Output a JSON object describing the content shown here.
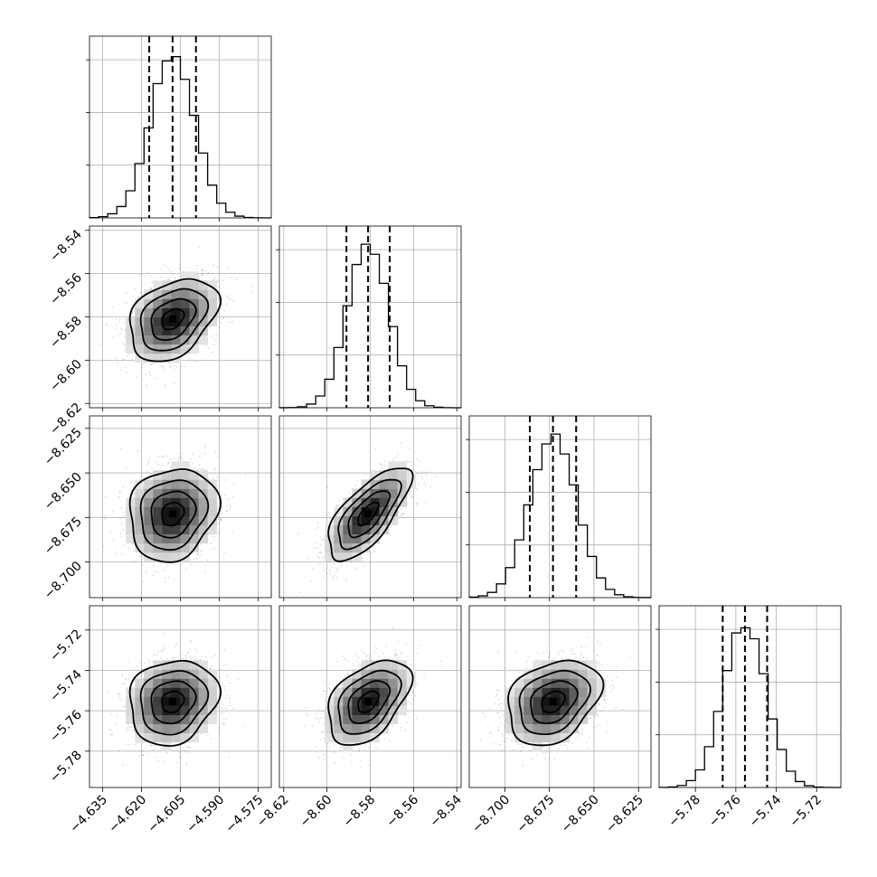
{
  "chart_data": {
    "type": "corner",
    "n_params": 4,
    "parameters": [
      {
        "median": -4.608,
        "q16": -4.617,
        "q84": -4.599,
        "sigma": 0.0085,
        "range": [
          -4.64,
          -4.57
        ],
        "ticks": [
          -4.635,
          -4.62,
          -4.605,
          -4.59,
          -4.575
        ],
        "tick_labels": [
          "−4.635",
          "−4.620",
          "−4.605",
          "−4.590",
          "−4.575"
        ]
      },
      {
        "median": -8.581,
        "q16": -8.591,
        "q84": -8.571,
        "sigma": 0.0095,
        "range": [
          -8.622,
          -8.538
        ],
        "ticks": [
          -8.62,
          -8.6,
          -8.58,
          -8.56,
          -8.54
        ],
        "tick_labels": [
          "−8.62",
          "−8.60",
          "−8.58",
          "−8.56",
          "−8.54"
        ]
      },
      {
        "median": -8.673,
        "q16": -8.686,
        "q84": -8.66,
        "sigma": 0.013,
        "range": [
          -8.72,
          -8.618
        ],
        "ticks": [
          -8.7,
          -8.675,
          -8.65,
          -8.625
        ],
        "tick_labels": [
          "−8.700",
          "−8.675",
          "−8.650",
          "−8.625"
        ]
      },
      {
        "median": -5.7555,
        "q16": -5.7665,
        "q84": -5.7445,
        "sigma": 0.0105,
        "range": [
          -5.798,
          -5.708
        ],
        "ticks": [
          -5.78,
          -5.76,
          -5.74,
          -5.72
        ],
        "tick_labels": [
          "−5.78",
          "−5.76",
          "−5.74",
          "−5.72"
        ]
      }
    ],
    "correlations": [
      {
        "pair": [
          0,
          1
        ],
        "rho": 0.35
      },
      {
        "pair": [
          0,
          2
        ],
        "rho": 0.15
      },
      {
        "pair": [
          1,
          2
        ],
        "rho": 0.7
      },
      {
        "pair": [
          0,
          3
        ],
        "rho": 0.15
      },
      {
        "pair": [
          1,
          3
        ],
        "rho": 0.45
      },
      {
        "pair": [
          2,
          3
        ],
        "rho": 0.3
      }
    ],
    "quantiles_shown": [
      0.16,
      0.5,
      0.84
    ],
    "contour_levels_sigma": [
      0.5,
      1,
      1.5,
      2
    ],
    "grid": true,
    "colors": {
      "points": "#666666",
      "lines": "#000000",
      "grid": "#b0b0b0"
    }
  }
}
